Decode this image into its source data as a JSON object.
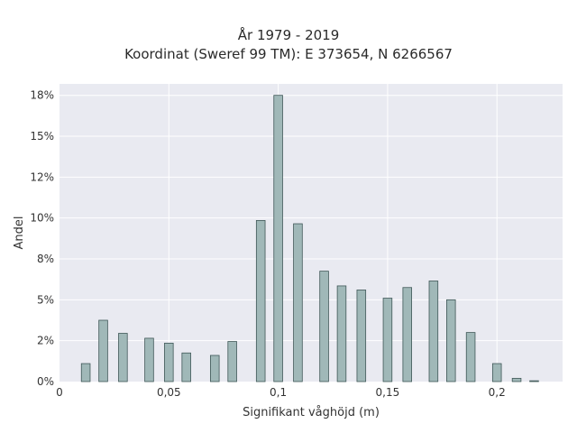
{
  "chart_data": {
    "type": "bar",
    "title": "År 1979 - 2019",
    "subtitle": "Koordinat (Sweref 99 TM): E 373654, N 6266567",
    "xlabel": "Signifikant våghöjd (m)",
    "ylabel": "Andel",
    "xlim": [
      0,
      0.23
    ],
    "ylim": [
      0,
      18.2
    ],
    "x_ticks": [
      0,
      0.05,
      0.1,
      0.15,
      0.2
    ],
    "x_tick_labels": [
      "0",
      "0,05",
      "0,1",
      "0,15",
      "0,2"
    ],
    "y_ticks": [
      0,
      2.5,
      5,
      7.5,
      10,
      12.5,
      15,
      17.5
    ],
    "y_tick_labels": [
      "0%",
      "2%",
      "5%",
      "8%",
      "10%",
      "12%",
      "15%",
      "18%"
    ],
    "bar_width": 0.004,
    "x": [
      0.012,
      0.02,
      0.029,
      0.041,
      0.05,
      0.058,
      0.071,
      0.079,
      0.092,
      0.1,
      0.109,
      0.121,
      0.129,
      0.138,
      0.15,
      0.159,
      0.171,
      0.179,
      0.188,
      0.2,
      0.209,
      0.217
    ],
    "values": [
      1.1,
      3.75,
      2.95,
      2.65,
      2.35,
      1.75,
      1.6,
      2.45,
      9.85,
      17.5,
      9.65,
      6.75,
      5.85,
      5.6,
      5.1,
      5.75,
      6.15,
      5.0,
      3.0,
      1.1,
      0.2,
      0.05
    ],
    "colors": {
      "bar_fill": "#a0b8b8",
      "bar_stroke": "#3f5757",
      "plot_bg": "#e9eaf1",
      "grid": "#ffffff"
    },
    "grid": true
  }
}
